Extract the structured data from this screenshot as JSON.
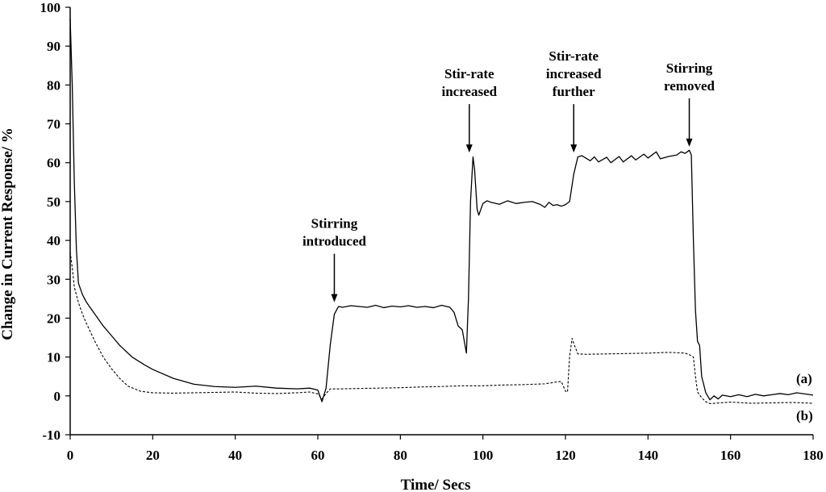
{
  "chart_data": {
    "type": "line",
    "xlabel": "Time/ Secs",
    "ylabel": "Change in Current Response/ %",
    "xlim": [
      0,
      180
    ],
    "ylim": [
      -10,
      100
    ],
    "xticks": [
      0,
      20,
      40,
      60,
      80,
      100,
      120,
      140,
      160,
      180
    ],
    "yticks": [
      -10,
      0,
      10,
      20,
      30,
      40,
      50,
      60,
      70,
      80,
      90,
      100
    ],
    "grid": false,
    "series": [
      {
        "name": "(a)",
        "style": "solid",
        "points": [
          [
            0,
            97
          ],
          [
            0.5,
            80
          ],
          [
            1,
            55
          ],
          [
            1.5,
            38
          ],
          [
            2,
            29
          ],
          [
            3,
            26
          ],
          [
            4,
            24
          ],
          [
            6,
            21
          ],
          [
            8,
            18
          ],
          [
            10,
            15.5
          ],
          [
            12,
            13
          ],
          [
            15,
            10
          ],
          [
            18,
            8
          ],
          [
            20,
            6.8
          ],
          [
            25,
            4.5
          ],
          [
            30,
            3
          ],
          [
            35,
            2.4
          ],
          [
            40,
            2.2
          ],
          [
            45,
            2.5
          ],
          [
            50,
            2
          ],
          [
            55,
            1.8
          ],
          [
            58,
            2
          ],
          [
            60,
            1.5
          ],
          [
            61,
            -1.5
          ],
          [
            62,
            2
          ],
          [
            63,
            13
          ],
          [
            64,
            21
          ],
          [
            65,
            23
          ],
          [
            66,
            22.8
          ],
          [
            68,
            23.2
          ],
          [
            70,
            23
          ],
          [
            72,
            22.8
          ],
          [
            74,
            23.3
          ],
          [
            76,
            22.7
          ],
          [
            78,
            23.1
          ],
          [
            80,
            22.9
          ],
          [
            82,
            23.2
          ],
          [
            84,
            22.8
          ],
          [
            86,
            23
          ],
          [
            88,
            22.7
          ],
          [
            90,
            23.3
          ],
          [
            92,
            22.8
          ],
          [
            93,
            21.5
          ],
          [
            94,
            18
          ],
          [
            95,
            17
          ],
          [
            96,
            11
          ],
          [
            96.5,
            25
          ],
          [
            97,
            50
          ],
          [
            97.6,
            61.5
          ],
          [
            98,
            58
          ],
          [
            98.6,
            48
          ],
          [
            99,
            46.5
          ],
          [
            100,
            49.5
          ],
          [
            101,
            50.2
          ],
          [
            102,
            49.8
          ],
          [
            104,
            49.3
          ],
          [
            106,
            50.2
          ],
          [
            108,
            49.5
          ],
          [
            110,
            49.8
          ],
          [
            112,
            50
          ],
          [
            114,
            49.2
          ],
          [
            115,
            48.5
          ],
          [
            116,
            49.8
          ],
          [
            117,
            49
          ],
          [
            118,
            49.2
          ],
          [
            119,
            48.8
          ],
          [
            120,
            49.2
          ],
          [
            121,
            50
          ],
          [
            122,
            57
          ],
          [
            123,
            61.5
          ],
          [
            124,
            61.8
          ],
          [
            126,
            60.5
          ],
          [
            127,
            61.5
          ],
          [
            128,
            60.2
          ],
          [
            130,
            61.4
          ],
          [
            131,
            60
          ],
          [
            133,
            61.6
          ],
          [
            134,
            60.2
          ],
          [
            136,
            61.8
          ],
          [
            137,
            60.7
          ],
          [
            139,
            62.2
          ],
          [
            140,
            61.2
          ],
          [
            142,
            62.8
          ],
          [
            143,
            61
          ],
          [
            145,
            61.6
          ],
          [
            147,
            62
          ],
          [
            148,
            62.8
          ],
          [
            149,
            62.4
          ],
          [
            150,
            63.2
          ],
          [
            150.5,
            62
          ],
          [
            151,
            40
          ],
          [
            151.5,
            22
          ],
          [
            152,
            14
          ],
          [
            152.5,
            13
          ],
          [
            153,
            5
          ],
          [
            154,
            0.8
          ],
          [
            155,
            -1
          ],
          [
            156,
            0
          ],
          [
            157,
            -0.8
          ],
          [
            158,
            0.2
          ],
          [
            160,
            -0.2
          ],
          [
            162,
            0.3
          ],
          [
            164,
            -0.2
          ],
          [
            166,
            0.4
          ],
          [
            168,
            0
          ],
          [
            170,
            0.3
          ],
          [
            172,
            0.6
          ],
          [
            174,
            0.3
          ],
          [
            176,
            0.8
          ],
          [
            178,
            0.5
          ],
          [
            180,
            0.2
          ]
        ]
      },
      {
        "name": "(b)",
        "style": "dashed",
        "points": [
          [
            0,
            37
          ],
          [
            0.5,
            33
          ],
          [
            1,
            28
          ],
          [
            2,
            24
          ],
          [
            3,
            21
          ],
          [
            4,
            18.5
          ],
          [
            6,
            14
          ],
          [
            8,
            10
          ],
          [
            10,
            7
          ],
          [
            12,
            4.5
          ],
          [
            14,
            2.5
          ],
          [
            17,
            1.2
          ],
          [
            20,
            0.8
          ],
          [
            25,
            0.7
          ],
          [
            30,
            0.8
          ],
          [
            35,
            0.9
          ],
          [
            40,
            1
          ],
          [
            45,
            0.7
          ],
          [
            50,
            0.6
          ],
          [
            55,
            0.8
          ],
          [
            58,
            1
          ],
          [
            60,
            0.5
          ],
          [
            61,
            -0.8
          ],
          [
            62,
            0.6
          ],
          [
            63,
            1.8
          ],
          [
            65,
            1.8
          ],
          [
            70,
            1.9
          ],
          [
            75,
            2
          ],
          [
            80,
            2.1
          ],
          [
            85,
            2.3
          ],
          [
            90,
            2.4
          ],
          [
            95,
            2.6
          ],
          [
            100,
            2.6
          ],
          [
            105,
            2.8
          ],
          [
            110,
            2.9
          ],
          [
            115,
            3.1
          ],
          [
            118,
            3.6
          ],
          [
            119,
            3.7
          ],
          [
            120,
            1.2
          ],
          [
            120.5,
            1
          ],
          [
            121,
            10
          ],
          [
            121.6,
            14.8
          ],
          [
            122,
            13.5
          ],
          [
            123,
            10.8
          ],
          [
            125,
            10.7
          ],
          [
            130,
            10.8
          ],
          [
            135,
            10.9
          ],
          [
            140,
            11
          ],
          [
            145,
            11.2
          ],
          [
            149,
            11
          ],
          [
            150,
            10.6
          ],
          [
            151,
            10
          ],
          [
            151.5,
            5
          ],
          [
            152,
            1
          ],
          [
            153,
            -0.5
          ],
          [
            154,
            -1.5
          ],
          [
            155,
            -2
          ],
          [
            160,
            -1.6
          ],
          [
            165,
            -1.9
          ],
          [
            170,
            -1.8
          ],
          [
            175,
            -1.7
          ],
          [
            180,
            -1.9
          ]
        ]
      }
    ],
    "annotations": [
      {
        "lines": [
          "Stirring",
          "introduced"
        ],
        "arrow_x": 64,
        "arrow_tip_y": 23.5
      },
      {
        "lines": [
          "Stir-rate",
          "increased"
        ],
        "arrow_x": 96.7,
        "arrow_tip_y": 62
      },
      {
        "lines": [
          "Stir-rate",
          "increased",
          "further"
        ],
        "arrow_x": 122,
        "arrow_tip_y": 62
      },
      {
        "lines": [
          "Stirring",
          "removed"
        ],
        "arrow_x": 150,
        "arrow_tip_y": 63.5
      }
    ]
  }
}
